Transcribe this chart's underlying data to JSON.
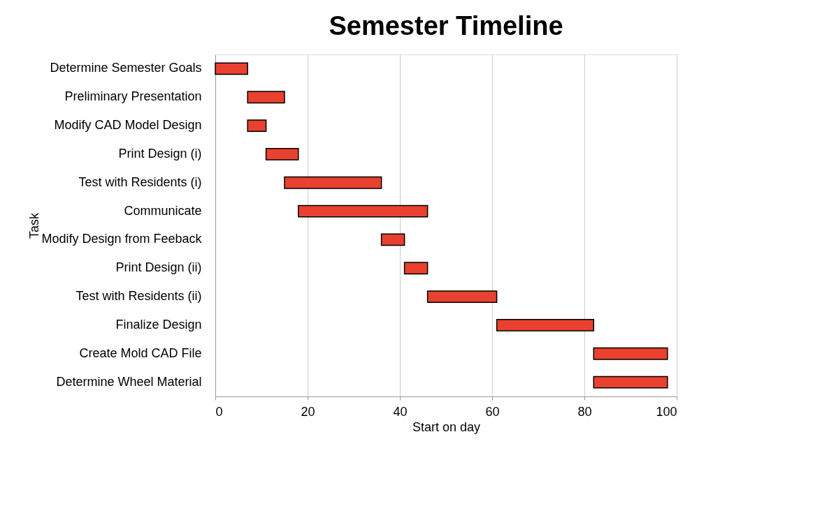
{
  "chart_data": {
    "type": "bar",
    "orientation": "horizontal",
    "title": "Semester Timeline",
    "xlabel": "Start on day",
    "ylabel": "Task",
    "categories": [
      "Determine Semester Goals",
      "Preliminary Presentation",
      "Modify CAD Model Design",
      "Print Design (i)",
      "Test with Residents (i)",
      "Communicate",
      "Modify Design from Feeback",
      "Print Design (ii)",
      "Test with Residents (ii)",
      "Finalize Design",
      "Create Mold CAD File",
      "Determine Wheel Material"
    ],
    "base": [
      0,
      7,
      7,
      11,
      15,
      18,
      36,
      41,
      46,
      61,
      82,
      82
    ],
    "values": [
      7,
      8,
      4,
      7,
      21,
      28,
      5,
      5,
      15,
      21,
      16,
      16
    ],
    "color": "#e8412f",
    "xlim": [
      0,
      100
    ],
    "xticks": [
      0,
      20,
      40,
      60,
      80,
      100
    ],
    "grid": "x"
  }
}
